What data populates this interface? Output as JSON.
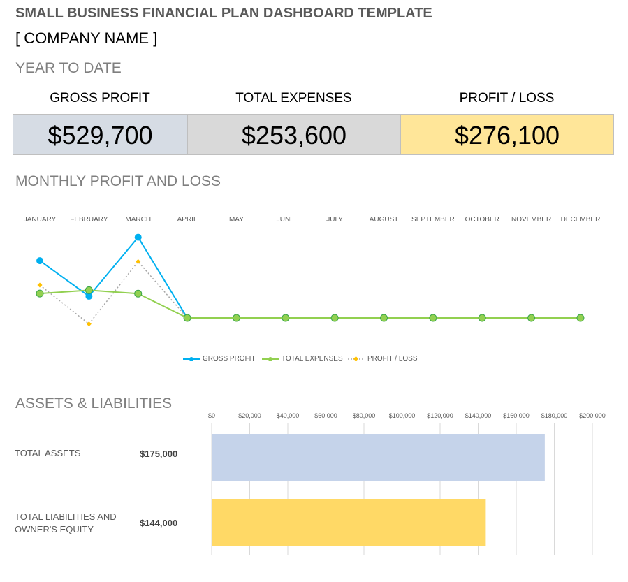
{
  "header": {
    "title": "SMALL BUSINESS FINANCIAL PLAN DASHBOARD TEMPLATE",
    "company": "[ COMPANY NAME ]"
  },
  "ytd": {
    "section_title": "YEAR TO DATE",
    "kpis": [
      {
        "label": "GROSS PROFIT",
        "value": "$529,700",
        "color": "#d6dce4"
      },
      {
        "label": "TOTAL EXPENSES",
        "value": "$253,600",
        "color": "#d9d9d9"
      },
      {
        "label": "PROFIT / LOSS",
        "value": "$276,100",
        "color": "#ffe699"
      }
    ]
  },
  "monthly": {
    "section_title": "MONTHLY PROFIT AND LOSS"
  },
  "assets": {
    "section_title": "ASSETS & LIABILITIES",
    "rows": [
      {
        "label": "TOTAL ASSETS",
        "value": "$175,000"
      },
      {
        "label": "TOTAL LIABILITIES AND OWNER'S EQUITY",
        "value": "$144,000"
      }
    ]
  },
  "chart_data": [
    {
      "type": "line",
      "title": "MONTHLY PROFIT AND LOSS",
      "categories": [
        "JANUARY",
        "FEBRUARY",
        "MARCH",
        "APRIL",
        "MAY",
        "JUNE",
        "JULY",
        "AUGUST",
        "SEPTEMBER",
        "OCTOBER",
        "NOVEMBER",
        "DECEMBER"
      ],
      "series": [
        {
          "name": "GROSS PROFIT",
          "color": "#00b0f0",
          "values": [
            190000,
            72000,
            267700,
            0,
            0,
            0,
            0,
            0,
            0,
            0,
            0,
            0
          ]
        },
        {
          "name": "TOTAL EXPENSES",
          "color": "#92d050",
          "values": [
            81000,
            92000,
            80600,
            0,
            0,
            0,
            0,
            0,
            0,
            0,
            0,
            0
          ]
        },
        {
          "name": "PROFIT / LOSS",
          "color": "#ffc000",
          "values": [
            109000,
            -20000,
            187100,
            0,
            0,
            0,
            0,
            0,
            0,
            0,
            0,
            0
          ]
        }
      ],
      "legend": "bottom"
    },
    {
      "type": "bar",
      "orientation": "horizontal",
      "title": "ASSETS & LIABILITIES",
      "categories": [
        "TOTAL ASSETS",
        "TOTAL LIABILITIES AND OWNER'S EQUITY"
      ],
      "values": [
        175000,
        144000
      ],
      "colors": [
        "#c5d3ea",
        "#ffd966"
      ],
      "xlim": [
        0,
        200000
      ],
      "ticks": [
        "$0",
        "$20,000",
        "$40,000",
        "$60,000",
        "$80,000",
        "$100,000",
        "$120,000",
        "$140,000",
        "$160,000",
        "$180,000",
        "$200,000"
      ],
      "grid": true
    }
  ]
}
